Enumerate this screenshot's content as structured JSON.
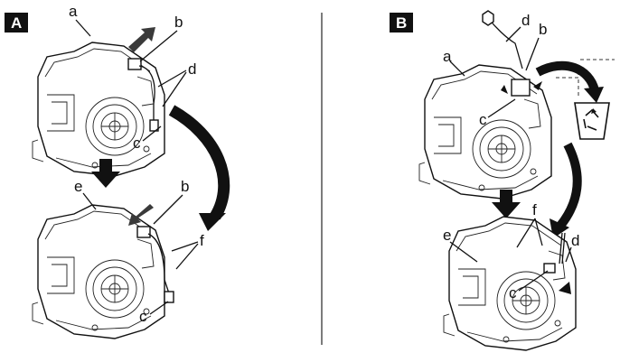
{
  "panels": [
    {
      "id": "A",
      "label": "A"
    },
    {
      "id": "B",
      "label": "B"
    }
  ],
  "labels": {
    "a": "a",
    "b": "b",
    "c": "c",
    "d": "d",
    "e": "e",
    "f": "f"
  },
  "colors": {
    "line": "#111111",
    "arrow_fill": "#111111",
    "dark_arrow": "#3a3a3a",
    "divider": "#444444"
  },
  "icons": [
    "recycle-bin-icon"
  ]
}
